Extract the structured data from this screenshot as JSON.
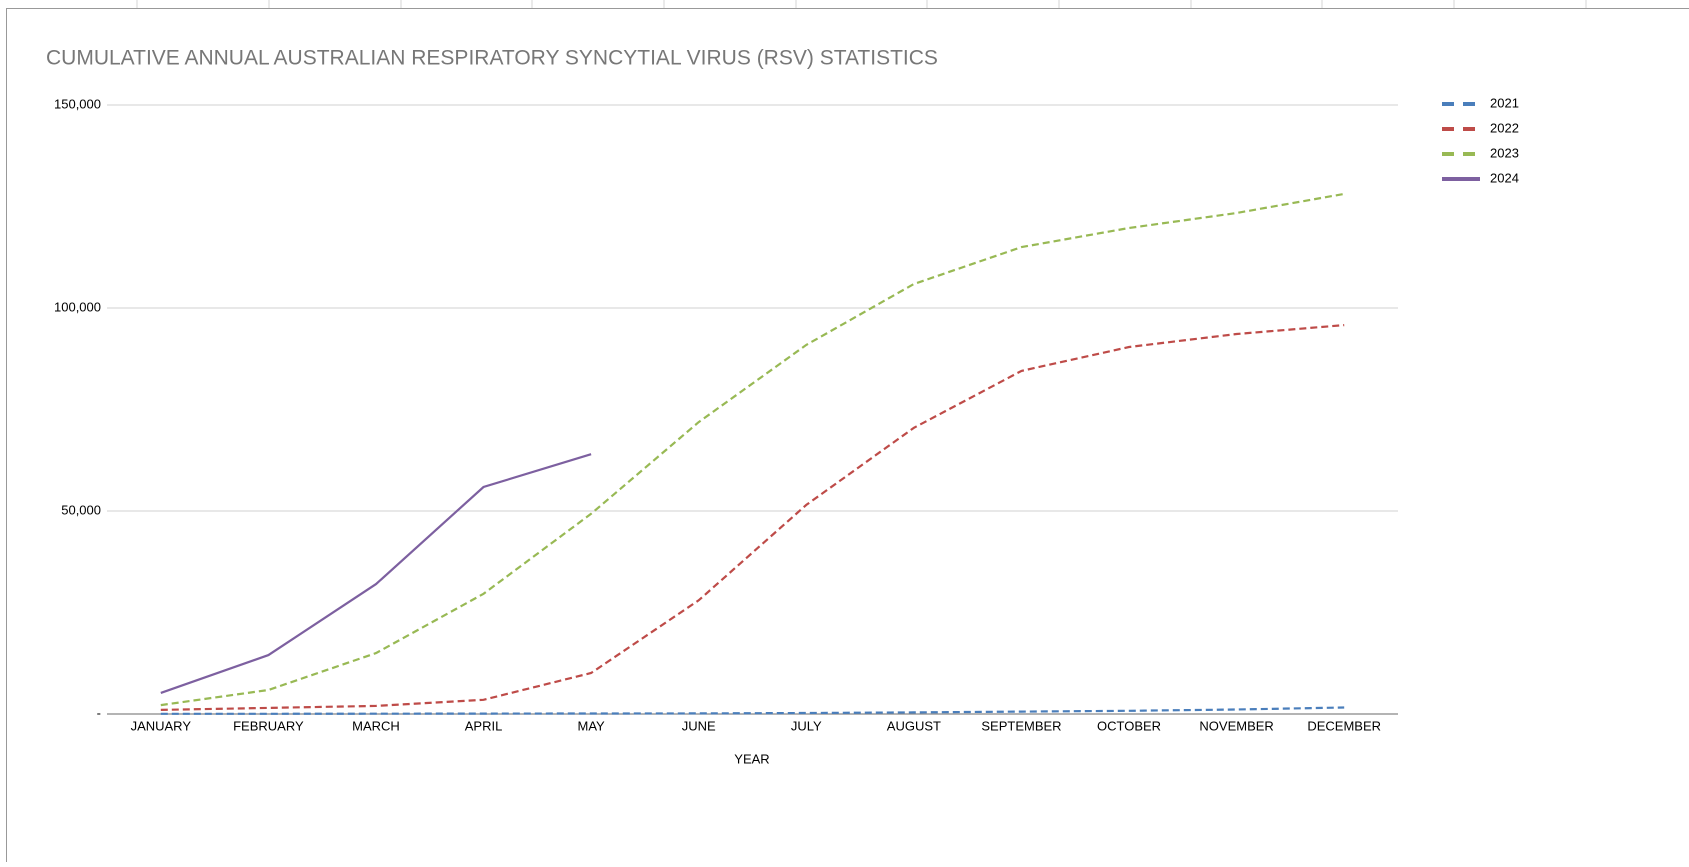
{
  "chart_data": {
    "type": "line",
    "title": "CUMULATIVE ANNUAL AUSTRALIAN RESPIRATORY SYNCYTIAL VIRUS (RSV) STATISTICS",
    "x_label": "YEAR",
    "categories": [
      "JANUARY",
      "FEBRUARY",
      "MARCH",
      "APRIL",
      "MAY",
      "JUNE",
      "JULY",
      "AUGUST",
      "SEPTEMBER",
      "OCTOBER",
      "NOVEMBER",
      "DECEMBER"
    ],
    "series": [
      {
        "name": "2021",
        "color": "#4a7ebb",
        "dashed": true,
        "values": [
          50,
          60,
          80,
          100,
          120,
          150,
          250,
          400,
          600,
          800,
          1100,
          1600
        ]
      },
      {
        "name": "2022",
        "color": "#be4b48",
        "dashed": true,
        "values": [
          1000,
          1500,
          2000,
          3500,
          10100,
          28000,
          51500,
          70500,
          84500,
          90400,
          93600,
          95800
        ]
      },
      {
        "name": "2023",
        "color": "#98b954",
        "dashed": true,
        "values": [
          2200,
          5900,
          15000,
          29600,
          49300,
          71900,
          90900,
          105900,
          115000,
          119700,
          123400,
          128100
        ]
      },
      {
        "name": "2024",
        "color": "#7d60a0",
        "dashed": false,
        "values": [
          5200,
          14500,
          32000,
          55900,
          64000,
          null,
          null,
          null,
          null,
          null,
          null,
          null
        ]
      }
    ],
    "ylim": [
      0,
      150000
    ],
    "yticks": [
      {
        "value": 0,
        "label": "-"
      },
      {
        "value": 50000,
        "label": "50,000"
      },
      {
        "value": 100000,
        "label": "100,000"
      },
      {
        "value": 150000,
        "label": "150,000"
      }
    ],
    "grid": true,
    "legend": "right"
  }
}
